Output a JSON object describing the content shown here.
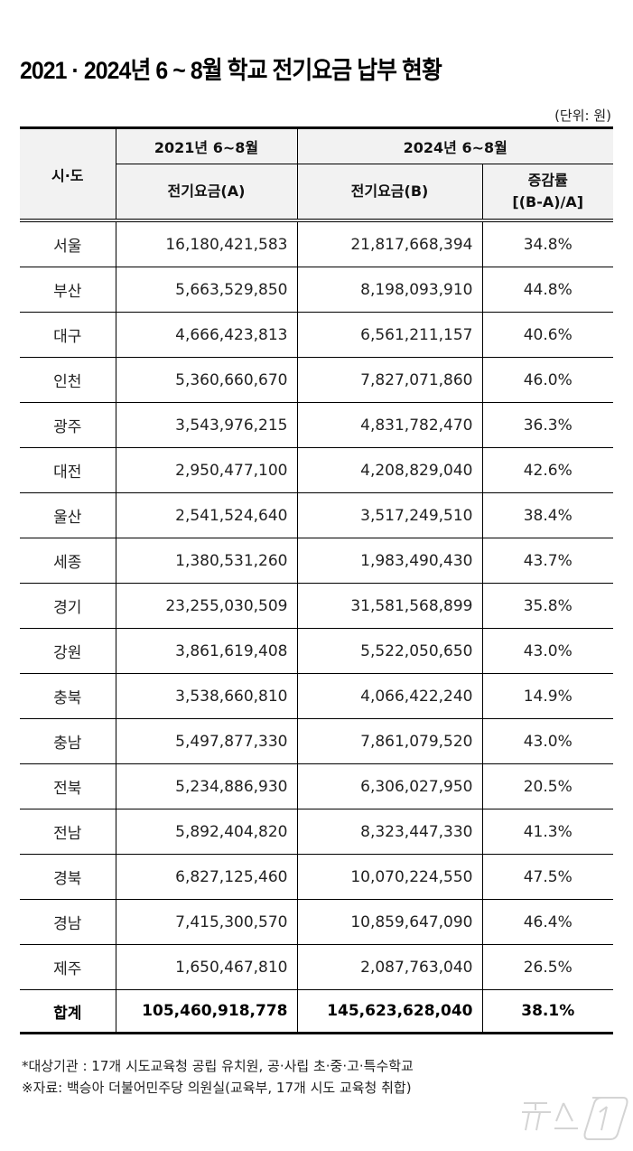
{
  "title": "2021 · 2024년 6 ~ 8월 학교 전기요금 납부 현황",
  "unit": "(단위: 원)",
  "table": {
    "header": {
      "sido": "시·도",
      "period_2021": "2021년 6~8월",
      "period_2024": "2024년 6~8월",
      "fee_a": "전기요금(A)",
      "fee_b": "전기요금(B)",
      "rate_line1": "증감률",
      "rate_line2": "[(B-A)/A]"
    },
    "rows": [
      {
        "region": "서울",
        "fee_2021": "16,180,421,583",
        "fee_2024": "21,817,668,394",
        "rate": "34.8%"
      },
      {
        "region": "부산",
        "fee_2021": "5,663,529,850",
        "fee_2024": "8,198,093,910",
        "rate": "44.8%"
      },
      {
        "region": "대구",
        "fee_2021": "4,666,423,813",
        "fee_2024": "6,561,211,157",
        "rate": "40.6%"
      },
      {
        "region": "인천",
        "fee_2021": "5,360,660,670",
        "fee_2024": "7,827,071,860",
        "rate": "46.0%"
      },
      {
        "region": "광주",
        "fee_2021": "3,543,976,215",
        "fee_2024": "4,831,782,470",
        "rate": "36.3%"
      },
      {
        "region": "대전",
        "fee_2021": "2,950,477,100",
        "fee_2024": "4,208,829,040",
        "rate": "42.6%"
      },
      {
        "region": "울산",
        "fee_2021": "2,541,524,640",
        "fee_2024": "3,517,249,510",
        "rate": "38.4%"
      },
      {
        "region": "세종",
        "fee_2021": "1,380,531,260",
        "fee_2024": "1,983,490,430",
        "rate": "43.7%"
      },
      {
        "region": "경기",
        "fee_2021": "23,255,030,509",
        "fee_2024": "31,581,568,899",
        "rate": "35.8%"
      },
      {
        "region": "강원",
        "fee_2021": "3,861,619,408",
        "fee_2024": "5,522,050,650",
        "rate": "43.0%"
      },
      {
        "region": "충북",
        "fee_2021": "3,538,660,810",
        "fee_2024": "4,066,422,240",
        "rate": "14.9%"
      },
      {
        "region": "충남",
        "fee_2021": "5,497,877,330",
        "fee_2024": "7,861,079,520",
        "rate": "43.0%"
      },
      {
        "region": "전북",
        "fee_2021": "5,234,886,930",
        "fee_2024": "6,306,027,950",
        "rate": "20.5%"
      },
      {
        "region": "전남",
        "fee_2021": "5,892,404,820",
        "fee_2024": "8,323,447,330",
        "rate": "41.3%"
      },
      {
        "region": "경북",
        "fee_2021": "6,827,125,460",
        "fee_2024": "10,070,224,550",
        "rate": "47.5%"
      },
      {
        "region": "경남",
        "fee_2021": "7,415,300,570",
        "fee_2024": "10,859,647,090",
        "rate": "46.4%"
      },
      {
        "region": "제주",
        "fee_2021": "1,650,467,810",
        "fee_2024": "2,087,763,040",
        "rate": "26.5%"
      }
    ],
    "total": {
      "region": "합계",
      "fee_2021": "105,460,918,778",
      "fee_2024": "145,623,628,040",
      "rate": "38.1%"
    }
  },
  "notes": [
    "*대상기관 : 17개 시도교육청 공립 유치원, 공·사립 초·중·고·특수학교",
    "※자료: 백승아 더불어민주당 의원실(교육부, 17개 시도 교육청 취합)"
  ],
  "watermark": "뉴스1"
}
